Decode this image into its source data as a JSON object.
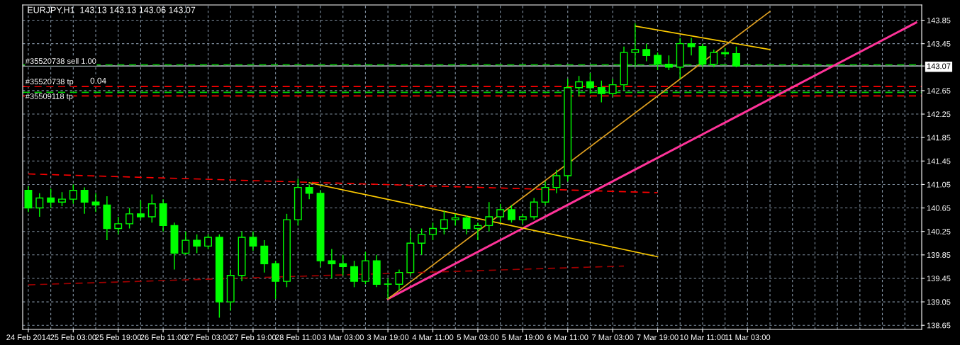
{
  "chart_data": {
    "type": "candlestick",
    "title": "EURJPY,H1  143.13 143.13 143.06 143.07",
    "categories": [
      "24 Feb 2014",
      null,
      null,
      null,
      "25 Feb 03:00",
      null,
      null,
      null,
      "25 Feb 19:00",
      null,
      null,
      null,
      "26 Feb 11:00",
      null,
      null,
      null,
      "27 Feb 03:00",
      null,
      null,
      null,
      "27 Feb 19:00",
      null,
      null,
      null,
      "28 Feb 11:00",
      null,
      null,
      null,
      "3 Mar 03:00",
      null,
      null,
      null,
      "3 Mar 19:00",
      null,
      null,
      null,
      "4 Mar 11:00",
      null,
      null,
      null,
      "5 Mar 03:00",
      null,
      null,
      null,
      "5 Mar 19:00",
      null,
      null,
      null,
      "6 Mar 11:00",
      null,
      null,
      null,
      "7 Mar 03:00",
      null,
      null,
      null,
      "7 Mar 19:00",
      null,
      null,
      null,
      "10 Mar 11:00",
      null,
      null,
      null,
      "11 Mar 03:00",
      null,
      null,
      null,
      null,
      null,
      null,
      null,
      null,
      null,
      null,
      null,
      null,
      null,
      null,
      null
    ],
    "ohlc": [
      [
        140.95,
        141.02,
        140.58,
        140.65
      ],
      [
        140.65,
        140.9,
        140.5,
        140.82
      ],
      [
        140.82,
        140.98,
        140.65,
        140.75
      ],
      [
        140.75,
        140.92,
        140.68,
        140.8
      ],
      [
        140.8,
        141.05,
        140.72,
        140.95
      ],
      [
        140.95,
        141.0,
        140.55,
        140.75
      ],
      [
        140.75,
        140.9,
        140.58,
        140.7
      ],
      [
        140.7,
        140.85,
        140.1,
        140.3
      ],
      [
        140.3,
        140.5,
        140.2,
        140.38
      ],
      [
        140.38,
        140.65,
        140.3,
        140.55
      ],
      [
        140.55,
        140.78,
        140.45,
        140.5
      ],
      [
        140.5,
        140.88,
        140.4,
        140.72
      ],
      [
        140.72,
        140.8,
        140.25,
        140.35
      ],
      [
        140.35,
        140.4,
        139.6,
        139.88
      ],
      [
        139.88,
        140.25,
        139.85,
        140.1
      ],
      [
        140.1,
        140.2,
        139.88,
        140.0
      ],
      [
        140.0,
        140.2,
        139.95,
        140.15
      ],
      [
        140.15,
        140.2,
        138.78,
        139.05
      ],
      [
        139.05,
        139.6,
        138.9,
        139.5
      ],
      [
        139.5,
        140.25,
        139.4,
        140.15
      ],
      [
        140.15,
        140.25,
        139.92,
        140.0
      ],
      [
        140.0,
        140.1,
        139.55,
        139.7
      ],
      [
        139.7,
        139.75,
        139.1,
        139.4
      ],
      [
        139.4,
        140.55,
        139.3,
        140.45
      ],
      [
        140.45,
        141.15,
        140.35,
        141.0
      ],
      [
        141.0,
        141.05,
        140.8,
        140.9
      ],
      [
        140.9,
        140.95,
        139.65,
        139.75
      ],
      [
        139.75,
        139.95,
        139.45,
        139.7
      ],
      [
        139.7,
        139.85,
        139.5,
        139.65
      ],
      [
        139.65,
        139.75,
        139.3,
        139.4
      ],
      [
        139.4,
        139.9,
        139.35,
        139.75
      ],
      [
        139.75,
        139.85,
        139.3,
        139.35
      ],
      [
        139.35,
        139.45,
        139.1,
        139.35
      ],
      [
        139.35,
        139.6,
        139.25,
        139.55
      ],
      [
        139.55,
        140.3,
        139.5,
        140.05
      ],
      [
        140.05,
        140.3,
        139.85,
        140.2
      ],
      [
        140.2,
        140.4,
        140.1,
        140.3
      ],
      [
        140.3,
        140.6,
        140.2,
        140.45
      ],
      [
        140.45,
        140.55,
        140.35,
        140.48
      ],
      [
        140.48,
        140.52,
        140.2,
        140.3
      ],
      [
        140.3,
        140.4,
        140.1,
        140.35
      ],
      [
        140.35,
        140.75,
        140.25,
        140.5
      ],
      [
        140.5,
        140.72,
        140.4,
        140.62
      ],
      [
        140.62,
        140.7,
        140.4,
        140.45
      ],
      [
        140.45,
        140.55,
        140.38,
        140.5
      ],
      [
        140.5,
        140.82,
        140.45,
        140.75
      ],
      [
        140.75,
        141.1,
        140.7,
        141.0
      ],
      [
        141.0,
        141.3,
        140.9,
        141.2
      ],
      [
        141.2,
        142.85,
        141.1,
        142.7
      ],
      [
        142.7,
        142.9,
        142.55,
        142.8
      ],
      [
        142.8,
        142.95,
        142.6,
        142.7
      ],
      [
        142.7,
        142.82,
        142.45,
        142.6
      ],
      [
        142.6,
        142.85,
        142.55,
        142.75
      ],
      [
        142.75,
        143.4,
        142.65,
        143.3
      ],
      [
        143.3,
        143.8,
        143.05,
        143.35
      ],
      [
        143.35,
        143.45,
        143.15,
        143.25
      ],
      [
        143.25,
        143.3,
        143.0,
        143.1
      ],
      [
        143.1,
        143.25,
        143.0,
        143.05
      ],
      [
        143.05,
        143.55,
        142.85,
        143.45
      ],
      [
        143.45,
        143.55,
        143.25,
        143.4
      ],
      [
        143.4,
        143.45,
        143.05,
        143.1
      ],
      [
        143.1,
        143.35,
        143.05,
        143.3
      ],
      [
        143.3,
        143.38,
        143.22,
        143.28
      ],
      [
        143.28,
        143.4,
        143.05,
        143.07
      ],
      null,
      null,
      null,
      null,
      null,
      null,
      null,
      null,
      null,
      null,
      null,
      null,
      null,
      null,
      null,
      null
    ],
    "color": "#00ff00",
    "series": [
      {
        "type": "line",
        "color": "#ff3399",
        "values": [
          null,
          null,
          null,
          null,
          null,
          null,
          null,
          null,
          null,
          null,
          null,
          null,
          null,
          null,
          null,
          null,
          null,
          null,
          null,
          null,
          null,
          null,
          null,
          null,
          null,
          null,
          null,
          null,
          null,
          null,
          null,
          null,
          139.1,
          null,
          null,
          null,
          null,
          null,
          null,
          null,
          null,
          null,
          null,
          null,
          null,
          null,
          null,
          null,
          null,
          null,
          null,
          null,
          null,
          null,
          null,
          null,
          null,
          null,
          null,
          null,
          null,
          null,
          null,
          null,
          null,
          null,
          null,
          null,
          null,
          null,
          null,
          null,
          null,
          null,
          null,
          null,
          null,
          null,
          null,
          143.81
        ]
      },
      {
        "type": "line",
        "color": "#ffcc00",
        "values": [
          null,
          null,
          null,
          null,
          null,
          null,
          null,
          null,
          null,
          null,
          null,
          null,
          null,
          null,
          null,
          null,
          null,
          null,
          null,
          null,
          null,
          null,
          null,
          null,
          null,
          141.08,
          null,
          null,
          null,
          null,
          null,
          null,
          null,
          null,
          null,
          null,
          null,
          null,
          null,
          null,
          null,
          null,
          null,
          null,
          null,
          null,
          null,
          null,
          null,
          null,
          null,
          null,
          null,
          null,
          null,
          null,
          139.82,
          null,
          null,
          null,
          null,
          null,
          null,
          null,
          null,
          null,
          null,
          null,
          null,
          null,
          null,
          null,
          null,
          null,
          null,
          null,
          null,
          null,
          null,
          null
        ]
      },
      {
        "type": "line",
        "color": "#ffcc00",
        "values": [
          null,
          null,
          null,
          null,
          null,
          null,
          null,
          null,
          null,
          null,
          null,
          null,
          null,
          null,
          null,
          null,
          null,
          null,
          null,
          null,
          null,
          null,
          null,
          null,
          null,
          null,
          null,
          null,
          null,
          null,
          null,
          null,
          null,
          null,
          null,
          null,
          null,
          null,
          null,
          null,
          null,
          null,
          null,
          null,
          null,
          null,
          null,
          null,
          null,
          null,
          null,
          null,
          null,
          null,
          143.75,
          null,
          null,
          null,
          null,
          null,
          null,
          null,
          null,
          null,
          null,
          null,
          143.35,
          null,
          null,
          null,
          null,
          null,
          null,
          null,
          null,
          null,
          null,
          null,
          null,
          null
        ]
      },
      {
        "type": "line",
        "color": "#e0a020",
        "values": [
          null,
          null,
          null,
          null,
          null,
          null,
          null,
          null,
          null,
          null,
          null,
          null,
          null,
          null,
          null,
          null,
          null,
          null,
          null,
          null,
          null,
          null,
          null,
          null,
          null,
          null,
          null,
          null,
          null,
          null,
          null,
          null,
          139.1,
          null,
          null,
          null,
          null,
          null,
          null,
          null,
          null,
          null,
          null,
          null,
          null,
          null,
          null,
          null,
          null,
          null,
          null,
          null,
          null,
          null,
          null,
          null,
          null,
          null,
          null,
          null,
          null,
          null,
          null,
          null,
          null,
          null,
          144.0,
          null,
          null,
          null,
          null,
          null,
          null,
          null,
          null,
          null,
          null,
          null,
          null,
          null
        ]
      },
      {
        "type": "line",
        "color": "#ff0000",
        "line_style": "dashed",
        "values": [
          141.23,
          null,
          null,
          null,
          null,
          null,
          null,
          null,
          null,
          null,
          null,
          null,
          null,
          null,
          null,
          null,
          null,
          null,
          null,
          null,
          null,
          null,
          null,
          null,
          null,
          null,
          null,
          null,
          null,
          null,
          null,
          null,
          null,
          null,
          null,
          null,
          null,
          null,
          null,
          null,
          null,
          null,
          null,
          null,
          null,
          null,
          null,
          null,
          null,
          null,
          null,
          null,
          null,
          null,
          null,
          null,
          140.91,
          null,
          null,
          null,
          null,
          null,
          null,
          null,
          null,
          null,
          null,
          null,
          null,
          null,
          null,
          null,
          null,
          null,
          null,
          null,
          null,
          null,
          null,
          null
        ]
      },
      {
        "type": "line",
        "color": "#a00000",
        "line_style": "dashed",
        "values": [
          139.34,
          null,
          null,
          null,
          null,
          null,
          null,
          null,
          null,
          null,
          null,
          null,
          null,
          null,
          null,
          null,
          null,
          null,
          null,
          null,
          null,
          null,
          null,
          null,
          null,
          null,
          null,
          null,
          null,
          null,
          null,
          null,
          null,
          null,
          null,
          null,
          null,
          null,
          null,
          null,
          null,
          null,
          null,
          null,
          null,
          null,
          null,
          null,
          null,
          null,
          null,
          null,
          null,
          139.66,
          null,
          null,
          null,
          null,
          null,
          null,
          null,
          null,
          null,
          null,
          null,
          null,
          null,
          null,
          null,
          null,
          null,
          null,
          null,
          null,
          null,
          null,
          null,
          null,
          null,
          null
        ]
      }
    ],
    "ylim": [
      138.58,
      144.11
    ],
    "yticks": [
      138.65,
      139.05,
      139.45,
      139.85,
      140.25,
      140.65,
      141.05,
      141.45,
      141.85,
      142.25,
      142.65,
      {
        "value": 143.07,
        "label": "143.07"
      },
      143.45,
      143.85
    ],
    "ref_lines": [
      {
        "axis": "y",
        "value": 143.07,
        "label": "#35520738 sell 1.00",
        "color": "#a0a8b0",
        "line_style": "solid"
      },
      {
        "axis": "y",
        "value": 143.09,
        "color": "#00cc00",
        "line_style": "dashed"
      },
      {
        "axis": "y",
        "value": 142.72,
        "label": "#35520738 tp",
        "color": "#ff0000",
        "line_style": "dashed"
      },
      {
        "axis": "y",
        "value": 142.62,
        "label": "#35509118 tp",
        "color": "#00cc00",
        "line_style": "dashed"
      },
      {
        "axis": "y",
        "value": 142.56,
        "color": "#ff0000",
        "line_style": "dashed"
      }
    ],
    "annotations": [
      "0.04"
    ],
    "grid": true
  }
}
